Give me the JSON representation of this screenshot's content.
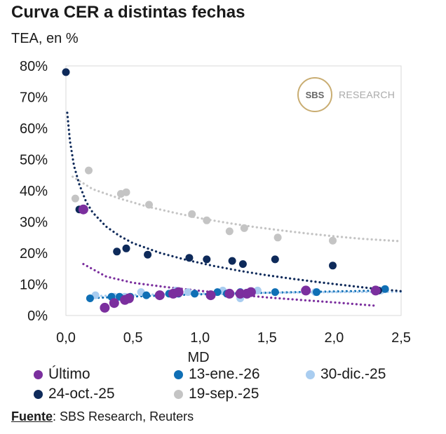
{
  "header": {
    "title": "Curva CER a distintas fechas",
    "subtitle": "TEA, en %"
  },
  "logo": {
    "badge": "SBS",
    "text": "RESEARCH"
  },
  "source": {
    "label": "Fuente",
    "text": ": SBS Research, Reuters"
  },
  "chart_data": {
    "type": "scatter",
    "xlabel": "MD",
    "ylabel": "",
    "xlim": [
      0,
      2.5
    ],
    "ylim": [
      0,
      80
    ],
    "x_ticks": [
      "0,0",
      "0,5",
      "1,0",
      "1,5",
      "2,0",
      "2,5"
    ],
    "y_ticks": [
      "0%",
      "10%",
      "20%",
      "30%",
      "40%",
      "50%",
      "60%",
      "70%",
      "80%"
    ],
    "grid": false,
    "legend_position": "bottom",
    "series": [
      {
        "name": "Último",
        "color": "#7b2f9e",
        "points": [
          [
            0.13,
            34
          ],
          [
            0.29,
            2.5
          ],
          [
            0.36,
            4
          ],
          [
            0.44,
            5
          ],
          [
            0.47,
            5.5
          ],
          [
            0.7,
            6.5
          ],
          [
            0.8,
            7
          ],
          [
            0.84,
            7.5
          ],
          [
            1.08,
            6.5
          ],
          [
            1.22,
            7
          ],
          [
            1.3,
            7
          ],
          [
            1.35,
            7
          ],
          [
            1.38,
            7.5
          ],
          [
            1.79,
            8
          ],
          [
            2.31,
            8
          ]
        ],
        "trend": [
          [
            0.13,
            16.5
          ],
          [
            0.3,
            12.5
          ],
          [
            0.5,
            10.5
          ],
          [
            0.75,
            9.1
          ],
          [
            1.0,
            7.9
          ],
          [
            1.25,
            6.8
          ],
          [
            1.5,
            5.8
          ],
          [
            1.75,
            5.0
          ],
          [
            2.0,
            4.2
          ],
          [
            2.32,
            3.1
          ]
        ]
      },
      {
        "name": "13-ene.-26",
        "color": "#0f6fb5",
        "points": [
          [
            0.18,
            5.5
          ],
          [
            0.34,
            6
          ],
          [
            0.4,
            6
          ],
          [
            0.48,
            6
          ],
          [
            0.6,
            6.5
          ],
          [
            0.77,
            7
          ],
          [
            0.84,
            7
          ],
          [
            0.96,
            7
          ],
          [
            1.13,
            7.5
          ],
          [
            1.2,
            7
          ],
          [
            1.3,
            7.5
          ],
          [
            1.56,
            7.5
          ],
          [
            1.87,
            7.5
          ],
          [
            2.38,
            8.5
          ]
        ],
        "trend": [
          [
            0.18,
            5.6
          ],
          [
            0.5,
            6.1
          ],
          [
            1.0,
            6.8
          ],
          [
            1.5,
            7.3
          ],
          [
            2.0,
            7.7
          ],
          [
            2.4,
            8.0
          ]
        ]
      },
      {
        "name": "30-dic.-25",
        "color": "#a9cdf0",
        "points": [
          [
            0.22,
            6.5
          ],
          [
            0.36,
            6
          ],
          [
            0.44,
            6
          ],
          [
            0.56,
            7.5
          ],
          [
            0.82,
            8
          ],
          [
            0.91,
            7.5
          ],
          [
            1.17,
            8
          ],
          [
            1.3,
            5.5
          ],
          [
            1.43,
            8
          ],
          [
            1.86,
            7.5
          ],
          [
            2.35,
            8
          ]
        ],
        "trend": [
          [
            0.2,
            6.2
          ],
          [
            0.5,
            6.6
          ],
          [
            1.0,
            7.0
          ],
          [
            1.5,
            7.3
          ],
          [
            2.0,
            7.5
          ],
          [
            2.5,
            7.6
          ]
        ]
      },
      {
        "name": "24-oct.-25",
        "color": "#0e2a5a",
        "points": [
          [
            0.0,
            78
          ],
          [
            0.1,
            34
          ],
          [
            0.38,
            20.5
          ],
          [
            0.45,
            21.5
          ],
          [
            0.61,
            19.5
          ],
          [
            0.92,
            18.5
          ],
          [
            1.05,
            18
          ],
          [
            1.24,
            17.5
          ],
          [
            1.32,
            16.5
          ],
          [
            1.56,
            18
          ],
          [
            1.99,
            16
          ],
          [
            2.33,
            8
          ]
        ],
        "trend": [
          [
            0.01,
            65
          ],
          [
            0.03,
            56
          ],
          [
            0.06,
            48
          ],
          [
            0.1,
            42
          ],
          [
            0.15,
            36.5
          ],
          [
            0.2,
            33
          ],
          [
            0.3,
            28.5
          ],
          [
            0.4,
            25.5
          ],
          [
            0.5,
            23.2
          ],
          [
            0.7,
            20.1
          ],
          [
            0.9,
            17.8
          ],
          [
            1.1,
            15.9
          ],
          [
            1.3,
            14.3
          ],
          [
            1.5,
            12.9
          ],
          [
            1.7,
            11.7
          ],
          [
            1.9,
            10.6
          ],
          [
            2.1,
            9.6
          ],
          [
            2.3,
            8.6
          ],
          [
            2.5,
            7.8
          ]
        ]
      },
      {
        "name": "19-sep.-25",
        "color": "#c4c4c4",
        "points": [
          [
            0.07,
            37.5
          ],
          [
            0.17,
            46.5
          ],
          [
            0.41,
            39
          ],
          [
            0.45,
            39.5
          ],
          [
            0.62,
            35.5
          ],
          [
            0.94,
            32.5
          ],
          [
            1.05,
            30.5
          ],
          [
            1.22,
            27
          ],
          [
            1.33,
            28
          ],
          [
            1.58,
            25
          ],
          [
            1.99,
            24
          ]
        ],
        "trend": [
          [
            0.05,
            44.5
          ],
          [
            0.2,
            40.5
          ],
          [
            0.4,
            37.5
          ],
          [
            0.6,
            35.0
          ],
          [
            0.8,
            33.0
          ],
          [
            1.0,
            31.2
          ],
          [
            1.2,
            29.7
          ],
          [
            1.4,
            28.4
          ],
          [
            1.6,
            27.3
          ],
          [
            1.8,
            26.3
          ],
          [
            2.0,
            25.4
          ],
          [
            2.2,
            24.6
          ],
          [
            2.5,
            23.8
          ]
        ]
      }
    ]
  }
}
